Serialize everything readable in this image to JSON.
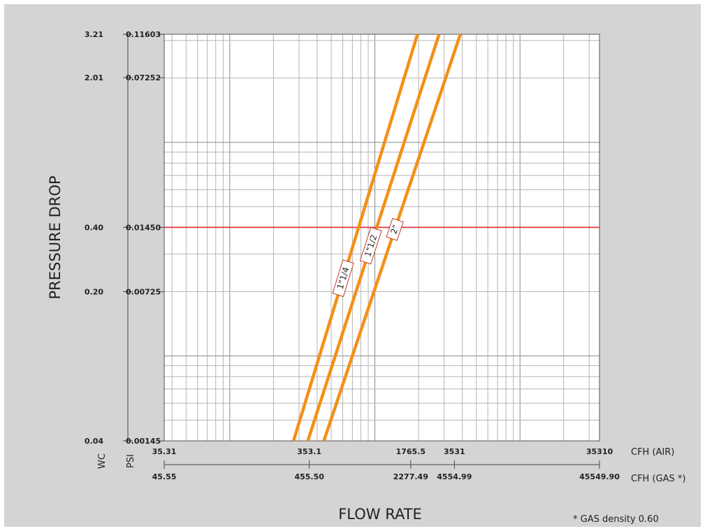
{
  "chart_data": {
    "type": "line",
    "scale": "log-log",
    "grid": true,
    "ylabel": "PRESSURE DROP",
    "xlabel": "FLOW RATE",
    "note": "* GAS density 0.60",
    "x_axes": {
      "air": {
        "unit": "CFH (AIR)",
        "ticks": [
          {
            "value": 35.31,
            "label": "35.31"
          },
          {
            "value": 353.1,
            "label": "353.1"
          },
          {
            "value": 1765.5,
            "label": "1765.5"
          },
          {
            "value": 3531,
            "label": "3531"
          },
          {
            "value": 35310,
            "label": "35310"
          }
        ]
      },
      "gas": {
        "unit": "CFH (GAS *)",
        "ticks": [
          {
            "value": 45.55,
            "label": "45.55"
          },
          {
            "value": 455.5,
            "label": "455.50"
          },
          {
            "value": 2277.49,
            "label": "2277.49"
          },
          {
            "value": 4554.99,
            "label": "4554.99"
          },
          {
            "value": 45549.9,
            "label": "45549.90"
          }
        ]
      }
    },
    "y_axes": {
      "wc": {
        "unit": "WC",
        "ticks": [
          {
            "value": 0.04,
            "label": "0.04"
          },
          {
            "value": 0.2,
            "label": "0.20"
          },
          {
            "value": 0.4,
            "label": "0.40"
          },
          {
            "value": 2.01,
            "label": "2.01"
          },
          {
            "value": 3.21,
            "label": "3.21"
          }
        ]
      },
      "psi": {
        "unit": "PSI",
        "ticks": [
          {
            "value": 0.00145,
            "label": "0.00145"
          },
          {
            "value": 0.00725,
            "label": "0.00725"
          },
          {
            "value": 0.0145,
            "label": "0.01450"
          },
          {
            "value": 0.07252,
            "label": "0.07252"
          },
          {
            "value": 0.11603,
            "label": "0.11603"
          }
        ]
      }
    },
    "xlim": [
      35.31,
      35310
    ],
    "ylim": [
      0.04,
      3.21
    ],
    "reference_line": {
      "y": 0.4,
      "color": "#e0292e"
    },
    "series_color": "#f39019",
    "series": [
      {
        "name": "1\"1/4",
        "x": [
          275,
          1965
        ],
        "y": [
          0.04,
          3.21
        ]
      },
      {
        "name": "1\"1/2",
        "x": [
          345,
          2770
        ],
        "y": [
          0.04,
          3.21
        ]
      },
      {
        "name": "2\"",
        "x": [
          445,
          3880
        ],
        "y": [
          0.04,
          3.21
        ]
      }
    ]
  }
}
